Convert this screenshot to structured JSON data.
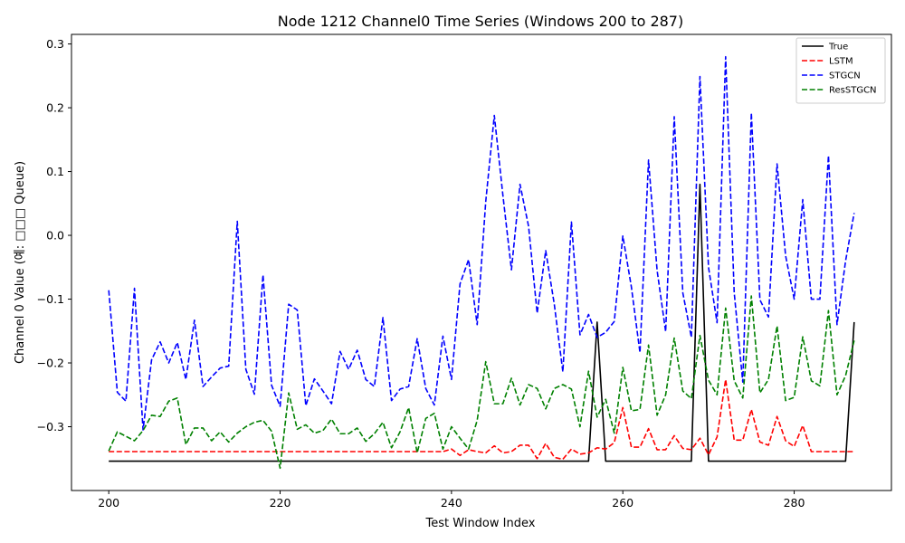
{
  "chart_data": {
    "type": "line",
    "title": "Node 1212 Channel0 Time Series (Windows 200 to 287)",
    "xlabel": "Test Window Index",
    "ylabel": "Channel 0 Value (예: □□□ Queue)",
    "xlim": [
      195.65,
      291.35
    ],
    "ylim": [
      -0.4,
      0.315
    ],
    "x_ticks": [
      200,
      220,
      240,
      260,
      280
    ],
    "y_ticks": [
      -0.3,
      -0.2,
      -0.1,
      0.0,
      0.1,
      0.2,
      0.3
    ],
    "x_tick_labels": [
      "200",
      "220",
      "240",
      "260",
      "280"
    ],
    "y_tick_labels": [
      "−0.3",
      "−0.2",
      "−0.1",
      "0.0",
      "0.1",
      "0.2",
      "0.3"
    ],
    "grid": false,
    "legend_position": "top-right",
    "x_start": 200,
    "series": [
      {
        "name": "True",
        "color": "#000000",
        "dash": "solid",
        "values": [
          -0.354,
          -0.354,
          -0.354,
          -0.354,
          -0.354,
          -0.354,
          -0.354,
          -0.354,
          -0.354,
          -0.354,
          -0.354,
          -0.354,
          -0.354,
          -0.354,
          -0.354,
          -0.354,
          -0.354,
          -0.354,
          -0.354,
          -0.354,
          -0.354,
          -0.354,
          -0.354,
          -0.354,
          -0.354,
          -0.354,
          -0.354,
          -0.354,
          -0.354,
          -0.354,
          -0.354,
          -0.354,
          -0.354,
          -0.354,
          -0.354,
          -0.354,
          -0.354,
          -0.354,
          -0.354,
          -0.354,
          -0.354,
          -0.354,
          -0.354,
          -0.354,
          -0.354,
          -0.354,
          -0.354,
          -0.354,
          -0.354,
          -0.354,
          -0.354,
          -0.354,
          -0.354,
          -0.354,
          -0.354,
          -0.354,
          -0.354,
          -0.136,
          -0.354,
          -0.354,
          -0.354,
          -0.354,
          -0.354,
          -0.354,
          -0.354,
          -0.354,
          -0.354,
          -0.354,
          -0.354,
          0.08,
          -0.354,
          -0.354,
          -0.354,
          -0.354,
          -0.354,
          -0.354,
          -0.354,
          -0.354,
          -0.354,
          -0.354,
          -0.354,
          -0.354,
          -0.354,
          -0.354,
          -0.354,
          -0.354,
          -0.354,
          -0.136
        ]
      },
      {
        "name": "LSTM",
        "color": "#ff0000",
        "dash": "dashed",
        "values": [
          -0.339,
          -0.339,
          -0.339,
          -0.339,
          -0.339,
          -0.339,
          -0.339,
          -0.339,
          -0.339,
          -0.339,
          -0.339,
          -0.339,
          -0.339,
          -0.339,
          -0.339,
          -0.339,
          -0.339,
          -0.339,
          -0.339,
          -0.339,
          -0.339,
          -0.339,
          -0.339,
          -0.339,
          -0.339,
          -0.339,
          -0.339,
          -0.339,
          -0.339,
          -0.339,
          -0.339,
          -0.339,
          -0.339,
          -0.339,
          -0.339,
          -0.339,
          -0.339,
          -0.339,
          -0.339,
          -0.339,
          -0.335,
          -0.345,
          -0.336,
          -0.339,
          -0.341,
          -0.33,
          -0.341,
          -0.339,
          -0.329,
          -0.329,
          -0.35,
          -0.326,
          -0.348,
          -0.351,
          -0.335,
          -0.343,
          -0.341,
          -0.333,
          -0.335,
          -0.325,
          -0.27,
          -0.332,
          -0.332,
          -0.303,
          -0.336,
          -0.336,
          -0.314,
          -0.334,
          -0.336,
          -0.318,
          -0.344,
          -0.316,
          -0.226,
          -0.321,
          -0.321,
          -0.273,
          -0.324,
          -0.329,
          -0.284,
          -0.322,
          -0.331,
          -0.298,
          -0.339,
          -0.339,
          -0.339,
          -0.339,
          -0.339,
          -0.339
        ]
      },
      {
        "name": "STGCN",
        "color": "#0000ff",
        "dash": "dashed",
        "values": [
          -0.086,
          -0.246,
          -0.26,
          -0.083,
          -0.305,
          -0.195,
          -0.167,
          -0.2,
          -0.168,
          -0.226,
          -0.133,
          -0.237,
          -0.222,
          -0.208,
          -0.205,
          0.022,
          -0.21,
          -0.249,
          -0.062,
          -0.235,
          -0.268,
          -0.108,
          -0.117,
          -0.267,
          -0.225,
          -0.244,
          -0.264,
          -0.182,
          -0.21,
          -0.18,
          -0.226,
          -0.237,
          -0.129,
          -0.259,
          -0.241,
          -0.237,
          -0.162,
          -0.24,
          -0.266,
          -0.158,
          -0.226,
          -0.076,
          -0.038,
          -0.14,
          0.053,
          0.188,
          0.063,
          -0.054,
          0.08,
          0.014,
          -0.122,
          -0.024,
          -0.108,
          -0.214,
          0.021,
          -0.156,
          -0.124,
          -0.16,
          -0.152,
          -0.135,
          -0.001,
          -0.081,
          -0.184,
          0.118,
          -0.055,
          -0.151,
          0.186,
          -0.09,
          -0.16,
          0.249,
          -0.05,
          -0.137,
          0.28,
          -0.09,
          -0.23,
          0.192,
          -0.101,
          -0.128,
          0.112,
          -0.032,
          -0.1,
          0.056,
          -0.1,
          -0.1,
          0.125,
          -0.14,
          -0.04,
          0.035
        ]
      },
      {
        "name": "ResSTGCN",
        "color": "#008000",
        "dash": "dashed",
        "values": [
          -0.338,
          -0.308,
          -0.315,
          -0.322,
          -0.306,
          -0.282,
          -0.284,
          -0.26,
          -0.255,
          -0.328,
          -0.302,
          -0.302,
          -0.322,
          -0.308,
          -0.324,
          -0.31,
          -0.3,
          -0.293,
          -0.29,
          -0.307,
          -0.365,
          -0.247,
          -0.304,
          -0.297,
          -0.31,
          -0.306,
          -0.288,
          -0.311,
          -0.311,
          -0.302,
          -0.323,
          -0.311,
          -0.293,
          -0.333,
          -0.308,
          -0.27,
          -0.341,
          -0.287,
          -0.279,
          -0.335,
          -0.3,
          -0.318,
          -0.335,
          -0.29,
          -0.198,
          -0.264,
          -0.264,
          -0.224,
          -0.266,
          -0.234,
          -0.24,
          -0.272,
          -0.24,
          -0.234,
          -0.241,
          -0.3,
          -0.213,
          -0.285,
          -0.257,
          -0.31,
          -0.207,
          -0.275,
          -0.273,
          -0.172,
          -0.282,
          -0.25,
          -0.161,
          -0.244,
          -0.256,
          -0.157,
          -0.227,
          -0.25,
          -0.114,
          -0.228,
          -0.255,
          -0.095,
          -0.247,
          -0.226,
          -0.142,
          -0.259,
          -0.254,
          -0.159,
          -0.228,
          -0.236,
          -0.118,
          -0.25,
          -0.22,
          -0.165
        ]
      }
    ]
  }
}
